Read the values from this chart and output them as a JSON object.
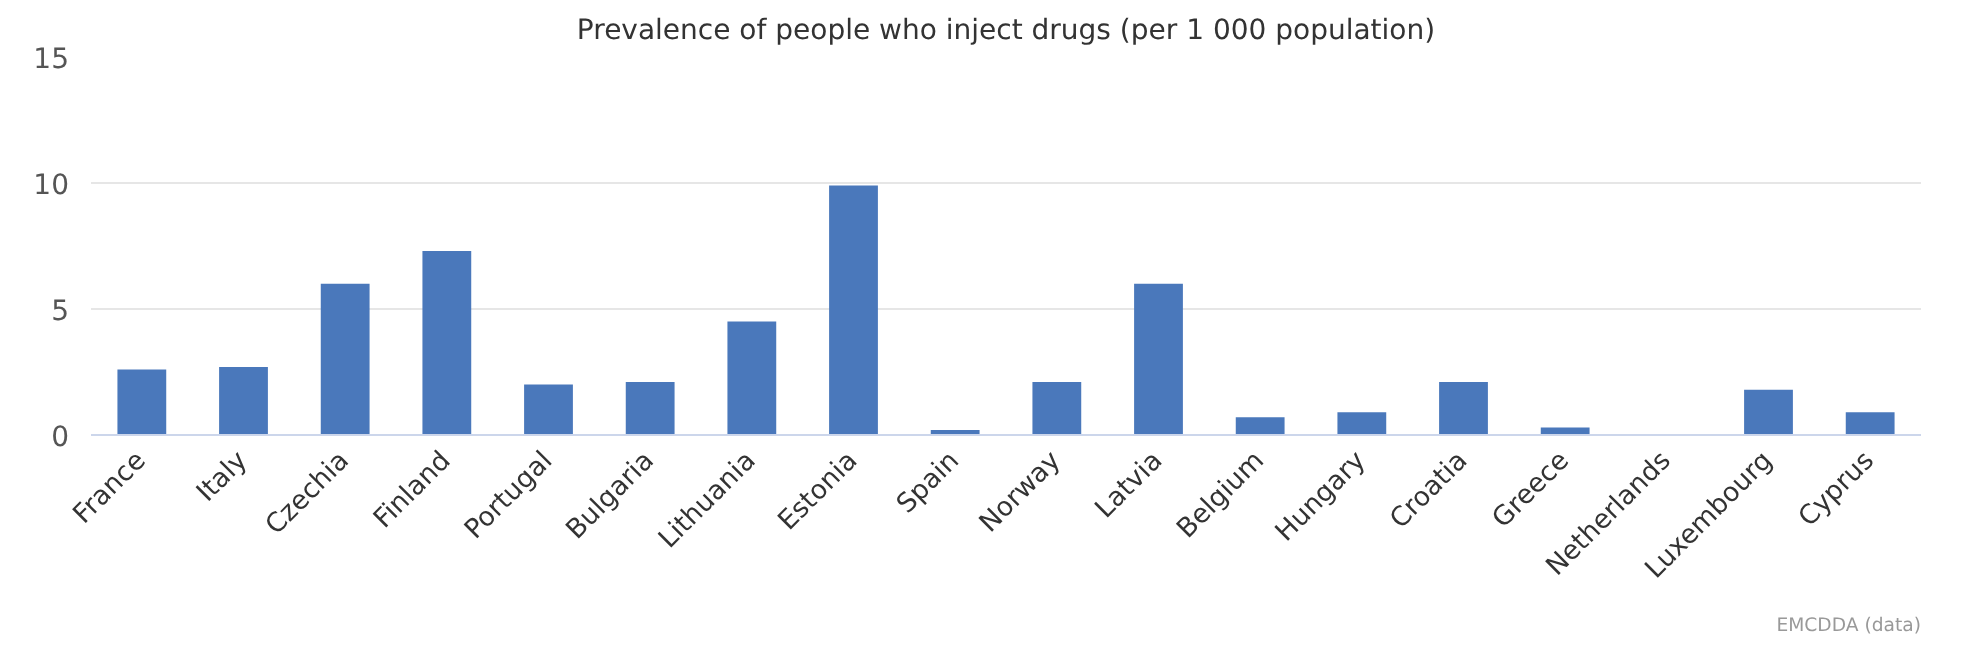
{
  "chart_data": {
    "type": "bar",
    "title": "Prevalence of people who inject drugs (per 1 000 population)",
    "categories": [
      "France",
      "Italy",
      "Czechia",
      "Finland",
      "Portugal",
      "Bulgaria",
      "Lithuania",
      "Estonia",
      "Spain",
      "Norway",
      "Latvia",
      "Belgium",
      "Hungary",
      "Croatia",
      "Greece",
      "Netherlands",
      "Luxembourg",
      "Cyprus"
    ],
    "values": [
      2.6,
      2.7,
      6.0,
      7.3,
      2.0,
      2.1,
      4.5,
      9.9,
      0.2,
      2.1,
      6.0,
      0.7,
      0.9,
      2.1,
      0.3,
      null,
      1.8,
      0.9
    ],
    "color": "#4a78bb",
    "ylim": [
      0,
      15
    ],
    "yticks": [
      0,
      5,
      10,
      15
    ],
    "grid": "y",
    "annotations": [
      "EMCDDA (data)"
    ]
  }
}
